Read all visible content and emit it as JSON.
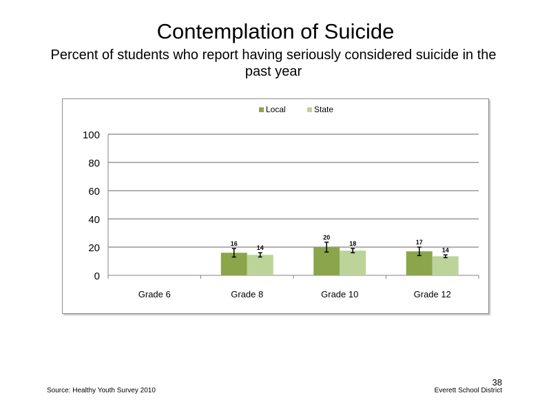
{
  "slide": {
    "title": "Contemplation  of Suicide",
    "subtitle": "Percent of students who report having seriously considered suicide in the past year",
    "source": "Source: Healthy Youth Survey 2010",
    "district": "Everett School District",
    "page_number": "38"
  },
  "colors": {
    "local": "#8aa54a",
    "state": "#bcd39a",
    "grid": "#808080",
    "axis": "#808080"
  },
  "chart_data": {
    "type": "bar",
    "categories": [
      "Grade 6",
      "Grade 8",
      "Grade 10",
      "Grade 12"
    ],
    "series": [
      {
        "name": "Local",
        "values": [
          null,
          16,
          20,
          17
        ],
        "labels": [
          "",
          "16",
          "20",
          "17"
        ],
        "error": [
          null,
          3,
          3.5,
          3
        ]
      },
      {
        "name": "State",
        "values": [
          null,
          14.5,
          17.5,
          13.5
        ],
        "labels": [
          "",
          "14",
          "18",
          "14"
        ],
        "error": [
          null,
          1.5,
          1.5,
          1
        ]
      }
    ],
    "ylim": [
      0,
      100
    ],
    "yticks": [
      "0",
      "20",
      "40",
      "60",
      "80",
      "100"
    ],
    "grid": true,
    "legend_position": "top-center"
  }
}
